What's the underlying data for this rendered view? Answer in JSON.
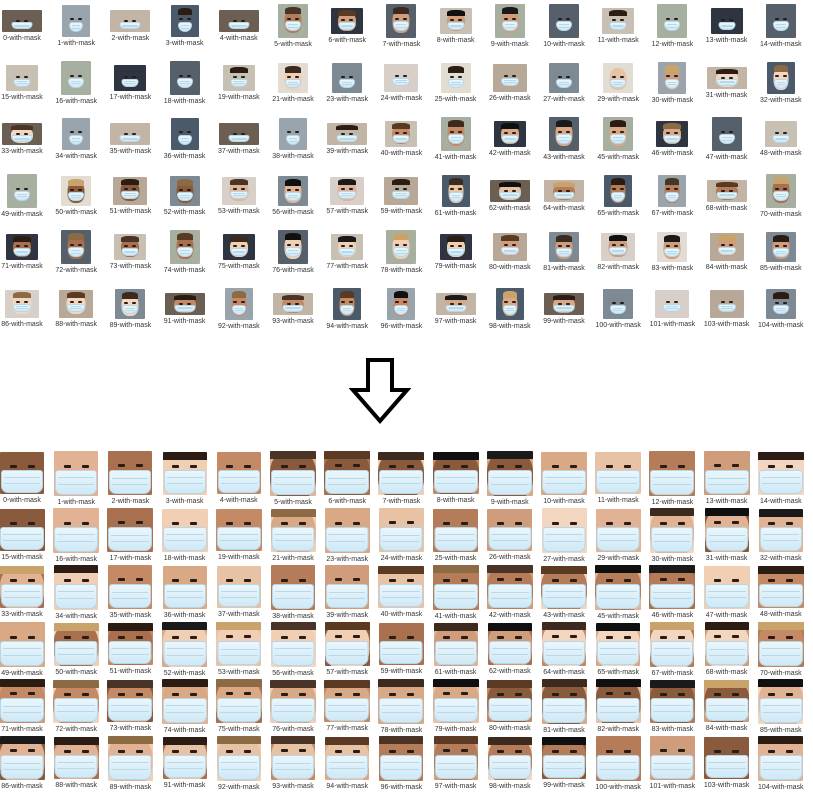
{
  "rows": [
    [
      "0-with-mask",
      "1-with-mask",
      "2-with-mask",
      "3-with-mask",
      "4-with-mask",
      "5-with-mask",
      "6-with-mask",
      "7-with-mask",
      "8-with-mask",
      "9-with-mask",
      "10-with-mask",
      "11-with-mask",
      "12-with-mask",
      "13-with-mask",
      "14-with-mask"
    ],
    [
      "15-with-mask",
      "16-with-mask",
      "17-with-mask",
      "18-with-mask",
      "19-with-mask",
      "21-with-mask",
      "23-with-mask",
      "24-with-mask",
      "25-with-mask",
      "26-with-mask",
      "27-with-mask",
      "29-with-mask",
      "30-with-mask",
      "31-with-mask",
      "32-with-mask"
    ],
    [
      "33-with-mask",
      "34-with-mask",
      "35-with-mask",
      "36-with-mask",
      "37-with-mask",
      "38-with-mask",
      "39-with-mask",
      "40-with-mask",
      "41-with-mask",
      "42-with-mask",
      "43-with-mask",
      "45-with-mask",
      "46-with-mask",
      "47-with-mask",
      "48-with-mask"
    ],
    [
      "49-with-mask",
      "50-with-mask",
      "51-with-mask",
      "52-with-mask",
      "53-with-mask",
      "56-with-mask",
      "57-with-mask",
      "59-with-mask",
      "61-with-mask",
      "62-with-mask",
      "64-with-mask",
      "65-with-mask",
      "67-with-mask",
      "68-with-mask",
      "70-with-mask"
    ],
    [
      "71-with-mask",
      "72-with-mask",
      "73-with-mask",
      "74-with-mask",
      "75-with-mask",
      "76-with-mask",
      "77-with-mask",
      "78-with-mask",
      "79-with-mask",
      "80-with-mask",
      "81-with-mask",
      "82-with-mask",
      "83-with-mask",
      "84-with-mask",
      "85-with-mask"
    ],
    [
      "86-with-mask",
      "88-with-mask",
      "89-with-mask",
      "91-with-mask",
      "92-with-mask",
      "93-with-mask",
      "94-with-mask",
      "96-with-mask",
      "97-with-mask",
      "98-with-mask",
      "99-with-mask",
      "100-with-mask",
      "101-with-mask",
      "103-with-mask",
      "104-with-mask"
    ]
  ],
  "arrow": {
    "icon": "down-arrow-icon",
    "stroke_color": "#000000",
    "fill_color": "#ffffff"
  },
  "colors": {
    "mask": "#dbeff8",
    "label": "#333333"
  }
}
